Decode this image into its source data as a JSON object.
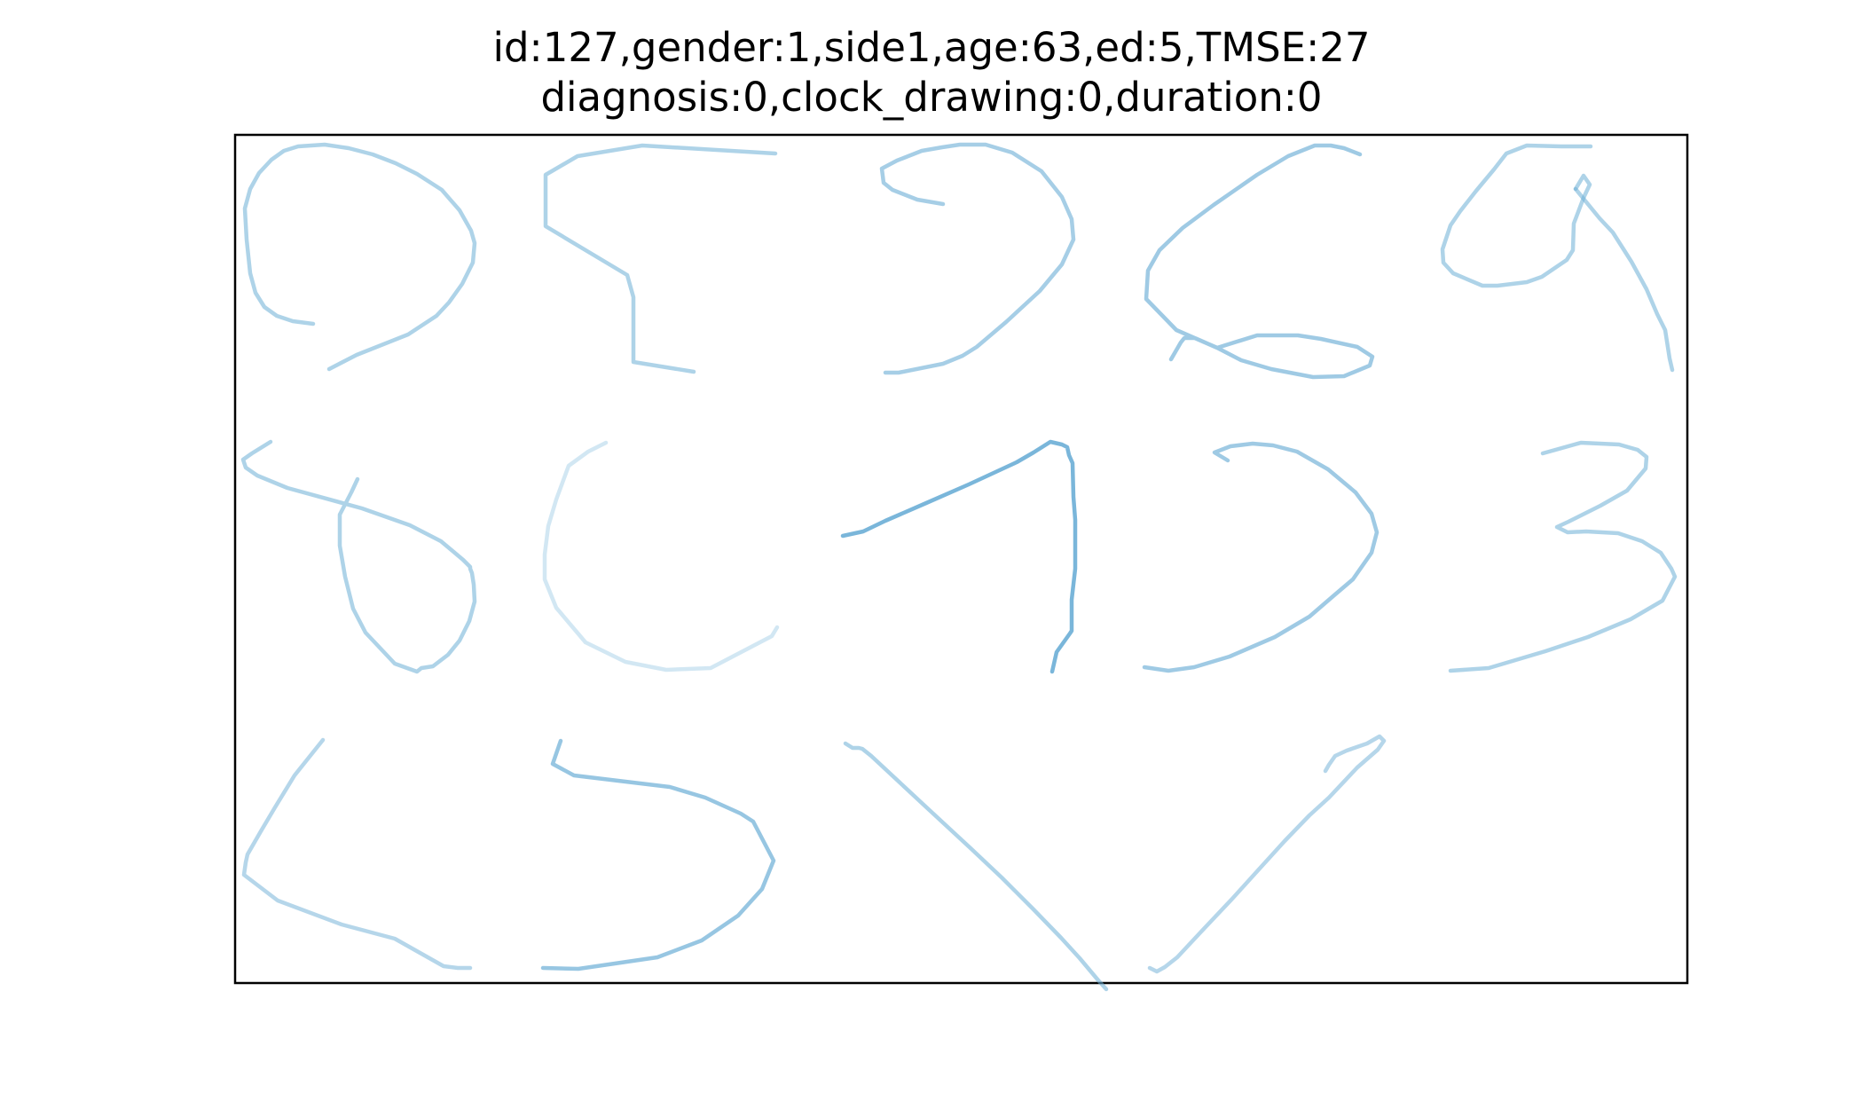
{
  "title": {
    "line1": "id:127,gender:1,side1,age:63,ed:5,TMSE:27",
    "line2": "diagnosis:0,clock_drawing:0,duration:0"
  },
  "stroke_color": "#6baed6",
  "figure": {
    "kind": "handwriting-trace-plot",
    "panels": 14,
    "layout": "3 rows: 5 / 5 / 4 digit traces"
  }
}
